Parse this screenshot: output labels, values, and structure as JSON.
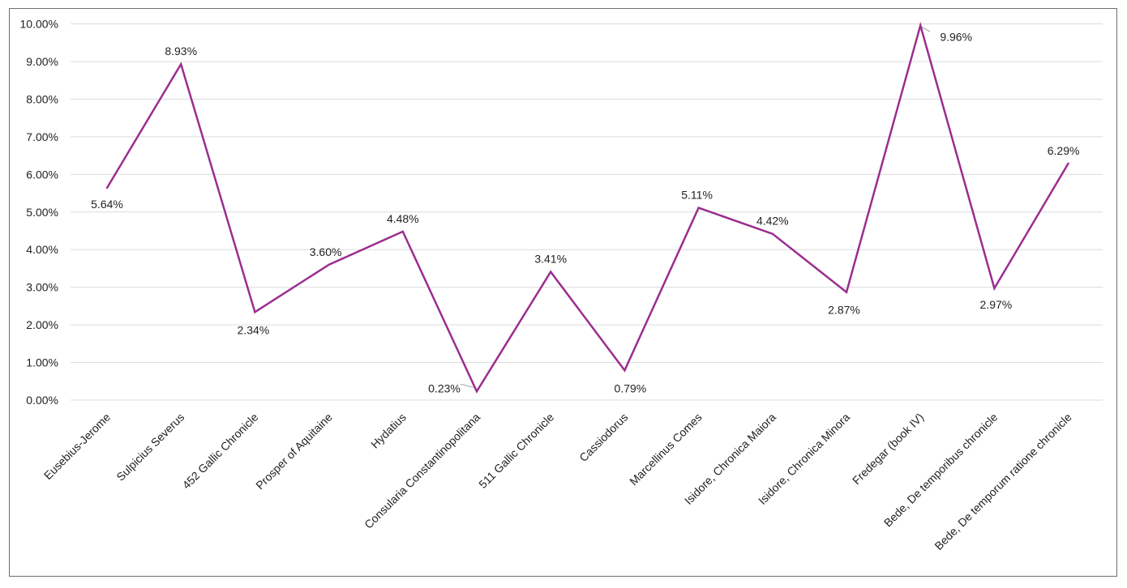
{
  "chart_data": {
    "type": "line",
    "title": "",
    "xlabel": "",
    "ylabel": "",
    "categories": [
      "Eusebius-Jerome",
      "Sulpicius Severus",
      "452 Gallic Chronicle",
      "Prosper of Aquitaine",
      "Hydatius",
      "Consularia Constantinopolitana",
      "511 Gallic Chronicle",
      "Cassiodorus",
      "Marcellinus Comes",
      "Isidore, Chronica Maiora",
      "Isidore, Chronica Minora",
      "Fredegar (book IV)",
      "Bede, De temporibus chronicle",
      "Bede, De temporum ratione chronicle"
    ],
    "series": [
      {
        "values": [
          5.64,
          8.93,
          2.34,
          3.6,
          4.48,
          0.23,
          3.41,
          0.79,
          5.11,
          4.42,
          2.87,
          9.96,
          2.97,
          6.29
        ],
        "labels": [
          "5.64%",
          "8.93%",
          "2.34%",
          "3.60%",
          "4.48%",
          "0.23%",
          "3.41%",
          "0.79%",
          "5.11%",
          "4.42%",
          "2.87%",
          "9.96%",
          "2.97%",
          "6.29%"
        ],
        "color": "#9b2d8f"
      }
    ],
    "yticks": [
      "0.00%",
      "1.00%",
      "2.00%",
      "3.00%",
      "4.00%",
      "5.00%",
      "6.00%",
      "7.00%",
      "8.00%",
      "9.00%",
      "10.00%"
    ],
    "ylim": [
      0,
      10
    ],
    "grid": true,
    "legend": "none"
  }
}
